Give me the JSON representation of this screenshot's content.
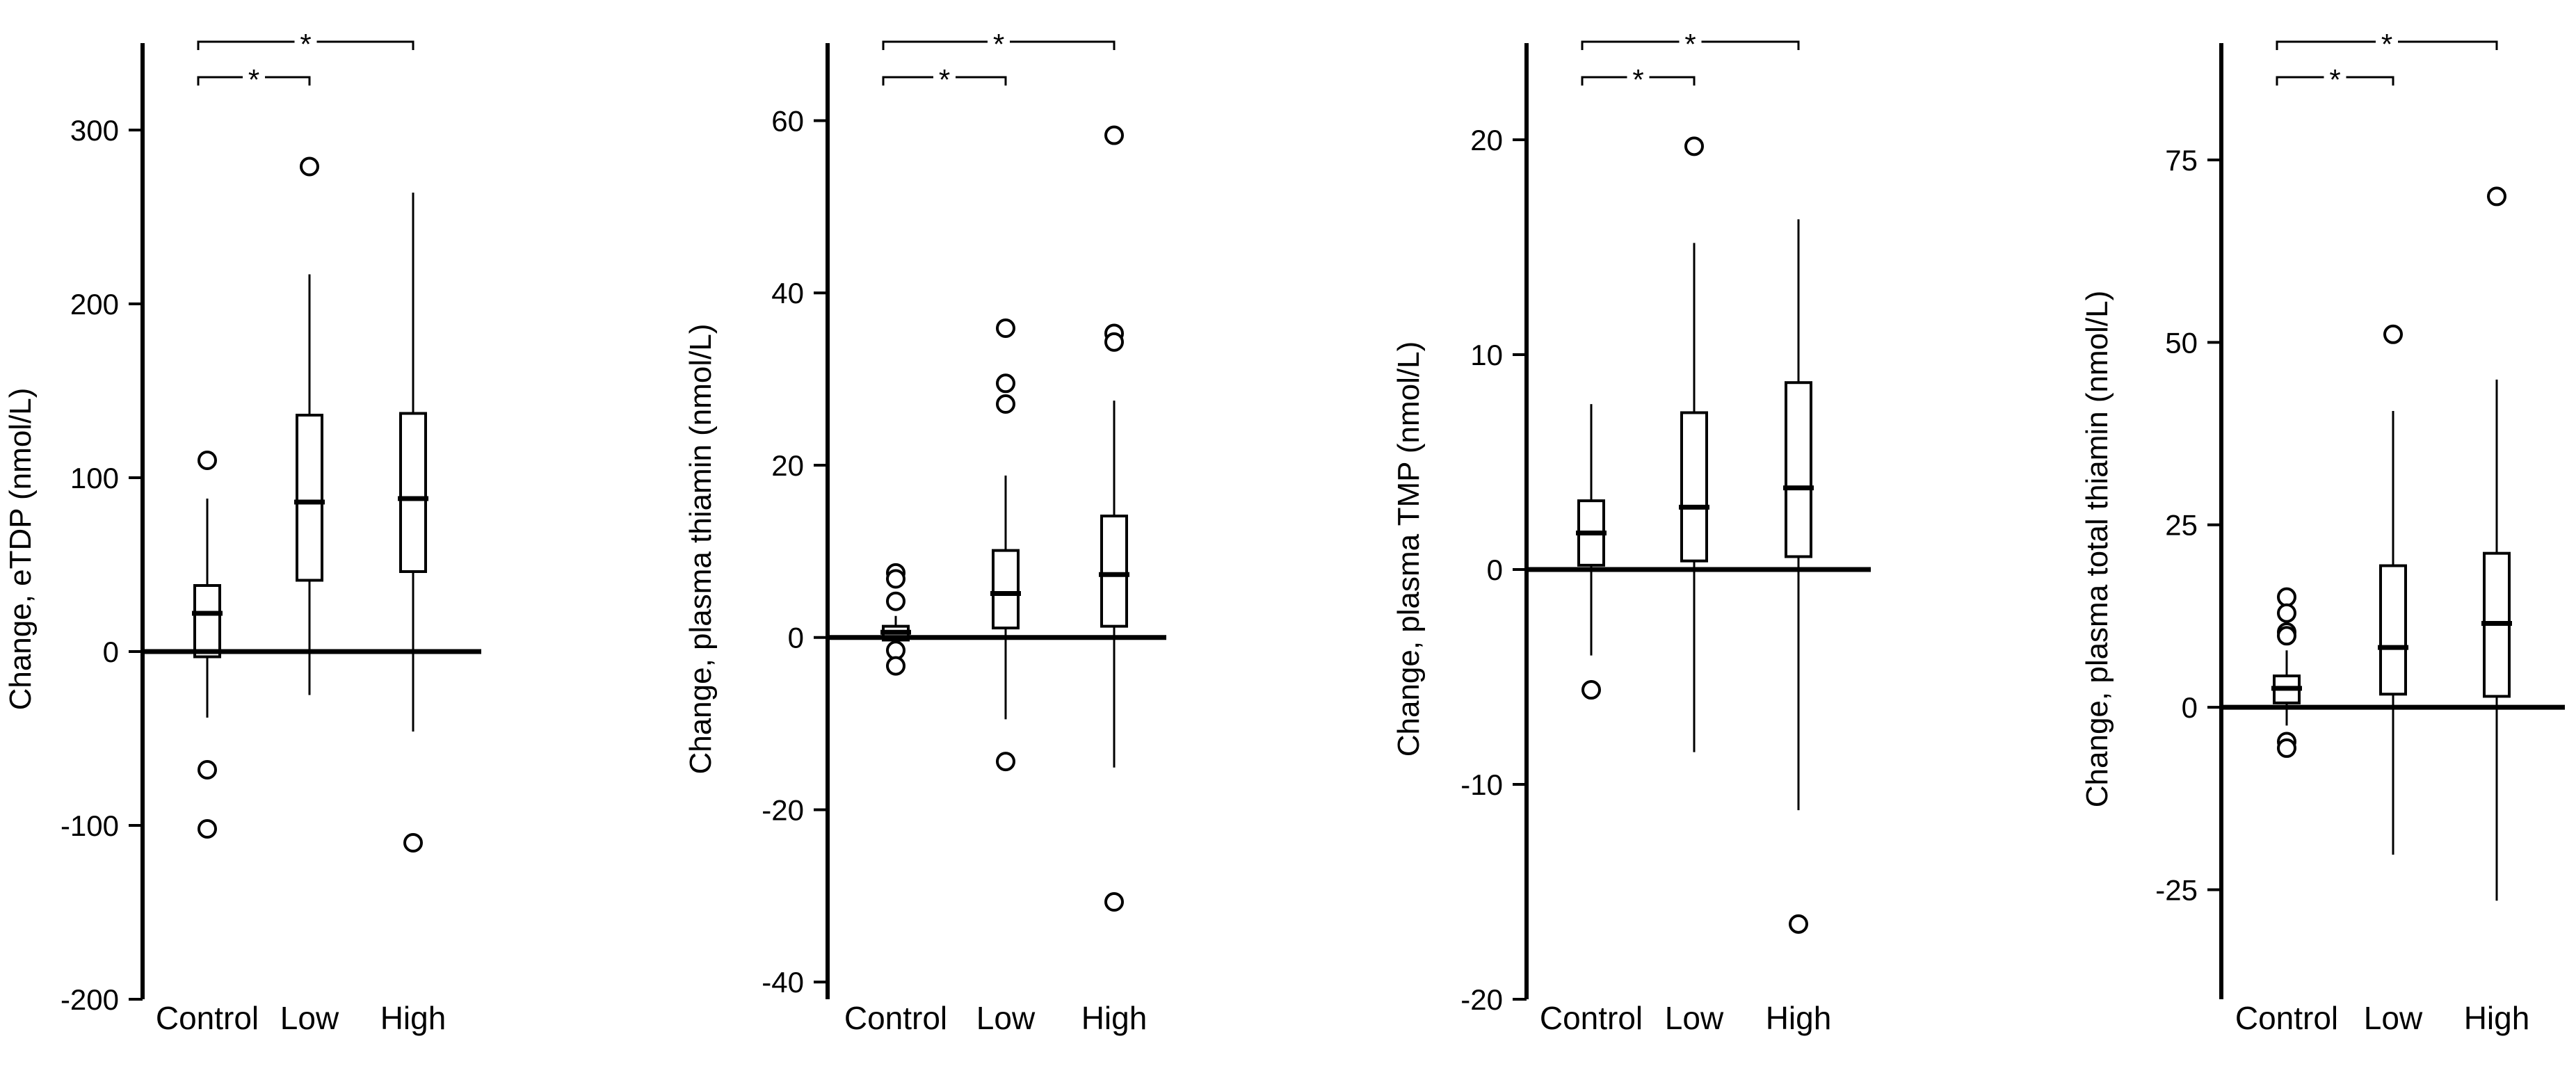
{
  "colors": {
    "ink": "#000000",
    "background": "#ffffff"
  },
  "chart_data": [
    {
      "type": "box",
      "ylabel": "Change, eTDP (nmol/L)",
      "categories": [
        "Control",
        "Low",
        "High"
      ],
      "ylim": [
        -200,
        350
      ],
      "yticks": [
        -200,
        -100,
        0,
        100,
        200,
        300
      ],
      "zero_line": 0,
      "boxes": [
        {
          "name": "Control",
          "whisker_low": -38,
          "q1": -3,
          "median": 22,
          "q3": 38,
          "whisker_high": 88,
          "outliers": [
            110,
            -68,
            -102
          ]
        },
        {
          "name": "Low",
          "whisker_low": -25,
          "q1": 41,
          "median": 86,
          "q3": 136,
          "whisker_high": 217,
          "outliers": [
            279
          ]
        },
        {
          "name": "High",
          "whisker_low": -46,
          "q1": 46,
          "median": 88,
          "q3": 137,
          "whisker_high": 264,
          "outliers": [
            -110
          ]
        }
      ],
      "significance": [
        {
          "from": "Control",
          "to": "Low",
          "label": "*"
        },
        {
          "from": "Control",
          "to": "High",
          "label": "*"
        }
      ]
    },
    {
      "type": "box",
      "ylabel": "Change, plasma thiamin (nmol/L)",
      "categories": [
        "Control",
        "Low",
        "High"
      ],
      "ylim": [
        -42,
        69
      ],
      "yticks": [
        -40,
        -20,
        0,
        20,
        40,
        60
      ],
      "zero_line": 0,
      "boxes": [
        {
          "name": "Control",
          "whisker_low": -0.5,
          "q1": -0.3,
          "median": 0.6,
          "q3": 1.3,
          "whisker_high": 2.5,
          "outliers": [
            7.5,
            6.8,
            4.2,
            -1.5,
            -3.3
          ]
        },
        {
          "name": "Low",
          "whisker_low": -9.5,
          "q1": 1.1,
          "median": 5.1,
          "q3": 10.1,
          "whisker_high": 18.8,
          "outliers": [
            35.9,
            29.5,
            27.1,
            -14.4
          ]
        },
        {
          "name": "High",
          "whisker_low": -15.1,
          "q1": 1.3,
          "median": 7.3,
          "q3": 14.1,
          "whisker_high": 27.5,
          "outliers": [
            58.3,
            35.3,
            34.3,
            -30.7
          ]
        }
      ],
      "significance": [
        {
          "from": "Control",
          "to": "Low",
          "label": "*"
        },
        {
          "from": "Control",
          "to": "High",
          "label": "*"
        }
      ]
    },
    {
      "type": "box",
      "ylabel": "Change, plasma TMP (nmol/L)",
      "categories": [
        "Control",
        "Low",
        "High"
      ],
      "ylim": [
        -20,
        24.5
      ],
      "yticks": [
        -20,
        -10,
        0,
        10,
        20
      ],
      "zero_line": 0,
      "boxes": [
        {
          "name": "Control",
          "whisker_low": -4,
          "q1": 0.2,
          "median": 1.7,
          "q3": 3.2,
          "whisker_high": 7.7,
          "outliers": [
            -5.6
          ]
        },
        {
          "name": "Low",
          "whisker_low": -8.5,
          "q1": 0.4,
          "median": 2.9,
          "q3": 7.3,
          "whisker_high": 15.2,
          "outliers": [
            19.7
          ]
        },
        {
          "name": "High",
          "whisker_low": -11.2,
          "q1": 0.6,
          "median": 3.8,
          "q3": 8.7,
          "whisker_high": 16.3,
          "outliers": [
            -16.5
          ]
        }
      ],
      "significance": [
        {
          "from": "Control",
          "to": "Low",
          "label": "*"
        },
        {
          "from": "Control",
          "to": "High",
          "label": "*"
        }
      ]
    },
    {
      "type": "box",
      "ylabel": "Change, plasma total thiamin (nmol/L)",
      "categories": [
        "Control",
        "Low",
        "High"
      ],
      "ylim": [
        -40,
        91
      ],
      "yticks": [
        -25,
        0,
        25,
        50,
        75
      ],
      "zero_line": 0,
      "boxes": [
        {
          "name": "Control",
          "whisker_low": -2.5,
          "q1": 0.6,
          "median": 2.6,
          "q3": 4.3,
          "whisker_high": 7.8,
          "outliers": [
            15.1,
            12.9,
            10.3,
            9.8,
            -4.7,
            -5.6
          ]
        },
        {
          "name": "Low",
          "whisker_low": -20.2,
          "q1": 1.8,
          "median": 8.2,
          "q3": 19.4,
          "whisker_high": 40.6,
          "outliers": [
            51.1
          ]
        },
        {
          "name": "High",
          "whisker_low": -26.5,
          "q1": 1.5,
          "median": 11.5,
          "q3": 21.1,
          "whisker_high": 44.9,
          "outliers": [
            70
          ]
        }
      ],
      "significance": [
        {
          "from": "Control",
          "to": "Low",
          "label": "*"
        },
        {
          "from": "Control",
          "to": "High",
          "label": "*"
        }
      ]
    }
  ]
}
